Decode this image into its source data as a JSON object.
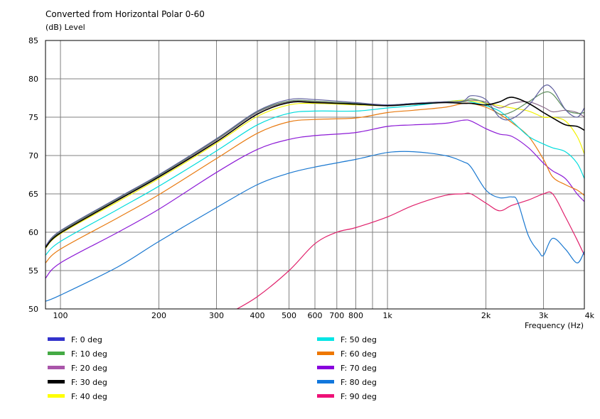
{
  "chart_data": {
    "type": "line",
    "title": "Converted from Horizontal Polar 0-60",
    "ylabel": "(dB)  Level",
    "xlabel": "Frequency  (Hz)",
    "x_scale": "log",
    "xlim": [
      90,
      4000
    ],
    "ylim": [
      50,
      85
    ],
    "grid": true,
    "y_ticks": [
      50,
      55,
      60,
      65,
      70,
      75,
      80,
      85
    ],
    "x_ticks": [
      {
        "v": 100,
        "label": "100"
      },
      {
        "v": 200,
        "label": "200"
      },
      {
        "v": 300,
        "label": "300"
      },
      {
        "v": 400,
        "label": "400"
      },
      {
        "v": 500,
        "label": "500"
      },
      {
        "v": 600,
        "label": "600"
      },
      {
        "v": 700,
        "label": "700"
      },
      {
        "v": 800,
        "label": "800"
      },
      {
        "v": 1000,
        "label": "1k"
      },
      {
        "v": 2000,
        "label": "2k"
      },
      {
        "v": 3000,
        "label": "3k"
      },
      {
        "v": 4000,
        "label": "4k"
      }
    ],
    "x_minor_grid": [
      900
    ],
    "legend_position": "bottom",
    "series": [
      {
        "name": "F: 0 deg",
        "color": "#3333cc",
        "draw_color": "#5e5e9e",
        "x": [
          90,
          100,
          150,
          200,
          300,
          400,
          500,
          600,
          800,
          1000,
          1200,
          1500,
          1700,
          1800,
          2000,
          2200,
          2400,
          2700,
          3000,
          3200,
          3500,
          3800,
          4000
        ],
        "y": [
          58.2,
          60.2,
          64.5,
          67.5,
          72.2,
          75.8,
          77.3,
          77.3,
          76.9,
          76.6,
          76.8,
          77.0,
          77.1,
          77.8,
          77.3,
          75.0,
          74.8,
          76.5,
          79.0,
          78.7,
          76.0,
          75.0,
          76.2
        ]
      },
      {
        "name": "F: 10 deg",
        "color": "#44aa44",
        "draw_color": "#5e8e5e",
        "x": [
          90,
          100,
          150,
          200,
          300,
          400,
          500,
          600,
          800,
          1000,
          1200,
          1500,
          1700,
          1800,
          2000,
          2200,
          2400,
          2700,
          3000,
          3200,
          3500,
          3800,
          4000
        ],
        "y": [
          58.1,
          60.1,
          64.4,
          67.4,
          72.1,
          75.7,
          77.1,
          77.1,
          76.8,
          76.6,
          76.8,
          77.0,
          77.0,
          77.4,
          76.8,
          75.4,
          75.7,
          77.0,
          78.2,
          78.0,
          76.0,
          75.5,
          75.6
        ]
      },
      {
        "name": "F: 20 deg",
        "color": "#aa55aa",
        "draw_color": "#8e6e8e",
        "x": [
          90,
          100,
          150,
          200,
          300,
          400,
          500,
          600,
          800,
          1000,
          1200,
          1500,
          1700,
          1800,
          2000,
          2200,
          2400,
          2700,
          3000,
          3200,
          3500,
          3800,
          4000
        ],
        "y": [
          58.1,
          60.0,
          64.3,
          67.3,
          72.0,
          75.6,
          77.0,
          77.0,
          76.7,
          76.5,
          76.8,
          77.0,
          77.0,
          77.2,
          77.0,
          76.2,
          76.8,
          77.0,
          76.3,
          75.7,
          75.9,
          75.6,
          75.0
        ]
      },
      {
        "name": "F: 30 deg",
        "color": "#000000",
        "draw_color": "#000000",
        "x": [
          90,
          100,
          150,
          200,
          300,
          400,
          500,
          600,
          800,
          1000,
          1200,
          1500,
          1700,
          1800,
          2000,
          2200,
          2400,
          2700,
          3000,
          3200,
          3500,
          3800,
          4000
        ],
        "y": [
          58.0,
          59.9,
          64.2,
          67.2,
          71.8,
          75.4,
          76.9,
          76.9,
          76.7,
          76.5,
          76.7,
          76.9,
          76.8,
          76.8,
          76.6,
          77.0,
          77.6,
          76.8,
          75.6,
          74.9,
          74.0,
          73.8,
          73.3
        ]
      },
      {
        "name": "F: 40 deg",
        "color": "#ffff00",
        "draw_color": "#f2f200",
        "x": [
          90,
          100,
          150,
          200,
          300,
          400,
          500,
          600,
          800,
          1000,
          1200,
          1500,
          1700,
          1800,
          2000,
          2200,
          2400,
          2700,
          3000,
          3200,
          3500,
          3800,
          4000
        ],
        "y": [
          57.9,
          59.8,
          64.0,
          67.0,
          71.6,
          75.1,
          76.6,
          76.8,
          76.6,
          76.5,
          76.7,
          77.0,
          77.2,
          77.1,
          76.8,
          76.5,
          76.2,
          75.8,
          75.0,
          75.0,
          74.5,
          72.5,
          70.2
        ]
      },
      {
        "name": "F: 50 deg",
        "color": "#00e5e5",
        "draw_color": "#00dcdc",
        "x": [
          90,
          100,
          150,
          200,
          300,
          400,
          500,
          600,
          800,
          1000,
          1200,
          1500,
          1700,
          1800,
          2000,
          2200,
          2400,
          2700,
          3000,
          3200,
          3500,
          3800,
          4000
        ],
        "y": [
          57.0,
          58.8,
          63.0,
          66.0,
          70.6,
          74.0,
          75.5,
          75.8,
          75.8,
          76.2,
          76.5,
          77.0,
          77.2,
          77.0,
          76.5,
          75.8,
          74.5,
          72.5,
          71.5,
          71.0,
          70.5,
          69.0,
          67.0
        ]
      },
      {
        "name": "F: 60 deg",
        "color": "#ee7700",
        "draw_color": "#e87a10",
        "x": [
          90,
          100,
          150,
          200,
          300,
          400,
          500,
          600,
          800,
          1000,
          1200,
          1500,
          1700,
          1800,
          2000,
          2200,
          2400,
          2700,
          3000,
          3200,
          3500,
          3800,
          4000
        ],
        "y": [
          56.0,
          57.8,
          61.9,
          64.9,
          69.6,
          72.9,
          74.4,
          74.7,
          74.9,
          75.6,
          75.9,
          76.3,
          76.8,
          76.8,
          76.3,
          75.4,
          74.3,
          72.5,
          69.5,
          67.2,
          66.2,
          65.5,
          64.8
        ]
      },
      {
        "name": "F: 70 deg",
        "color": "#8800dd",
        "draw_color": "#8c1ad6",
        "x": [
          90,
          100,
          150,
          200,
          300,
          400,
          500,
          600,
          800,
          1000,
          1200,
          1500,
          1700,
          1800,
          2000,
          2200,
          2400,
          2700,
          3000,
          3200,
          3500,
          3800,
          4000
        ],
        "y": [
          54.0,
          56.0,
          60.0,
          63.0,
          67.8,
          70.8,
          72.1,
          72.6,
          73.0,
          73.8,
          74.0,
          74.2,
          74.6,
          74.5,
          73.5,
          72.8,
          72.5,
          71.0,
          69.0,
          68.0,
          67.0,
          65.0,
          64.0
        ]
      },
      {
        "name": "F: 80 deg",
        "color": "#1177dd",
        "draw_color": "#1a78d0",
        "x": [
          90,
          100,
          150,
          200,
          300,
          400,
          500,
          600,
          800,
          1000,
          1200,
          1500,
          1700,
          1800,
          2000,
          2200,
          2400,
          2500,
          2700,
          2900,
          3000,
          3200,
          3500,
          3800,
          4000
        ],
        "y": [
          51.0,
          51.8,
          55.5,
          58.8,
          63.2,
          66.2,
          67.7,
          68.5,
          69.5,
          70.4,
          70.5,
          70.0,
          69.2,
          68.5,
          65.5,
          64.5,
          64.6,
          64.0,
          59.5,
          57.5,
          57.0,
          59.2,
          57.8,
          56.0,
          57.5
        ]
      },
      {
        "name": "F: 90 deg",
        "color": "#ee1177",
        "draw_color": "#e0206b",
        "x": [
          330,
          400,
          500,
          600,
          700,
          800,
          1000,
          1200,
          1500,
          1700,
          1800,
          2000,
          2200,
          2400,
          2700,
          3000,
          3200,
          3500,
          3800,
          4000
        ],
        "y": [
          49.5,
          51.6,
          55.0,
          58.5,
          60.0,
          60.6,
          62.0,
          63.5,
          64.8,
          65.0,
          65.0,
          63.8,
          62.8,
          63.5,
          64.2,
          65.0,
          65.0,
          62.0,
          59.0,
          57.0
        ]
      }
    ]
  }
}
